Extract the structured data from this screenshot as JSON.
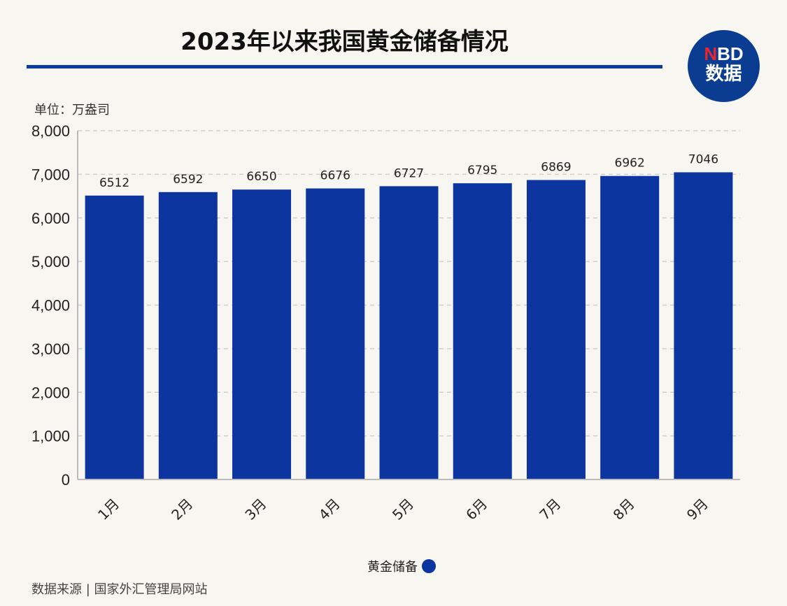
{
  "header": {
    "title": "2023年以来我国黄金储备情况",
    "logo_top": "NBD",
    "logo_bottom": "数据"
  },
  "unit": "单位：万盎司",
  "source": "数据来源 | 国家外汇管理局网站",
  "colors": {
    "bar": "#0d35a0",
    "rule": "#0d3d9a",
    "logo": "#0a3d91"
  },
  "chart_data": {
    "type": "bar",
    "title": "2023年以来我国黄金储备情况",
    "ylabel": "单位：万盎司",
    "categories": [
      "1月",
      "2月",
      "3月",
      "4月",
      "5月",
      "6月",
      "7月",
      "8月",
      "9月"
    ],
    "series": [
      {
        "name": "黄金储备",
        "values": [
          6512,
          6592,
          6650,
          6676,
          6727,
          6795,
          6869,
          6962,
          7046
        ]
      }
    ],
    "ylim": [
      0,
      8000
    ],
    "yticks": [
      "0",
      "1,000",
      "2,000",
      "3,000",
      "4,000",
      "5,000",
      "6,000",
      "7,000",
      "8,000"
    ],
    "grid": true,
    "legend": "bottom-center"
  }
}
